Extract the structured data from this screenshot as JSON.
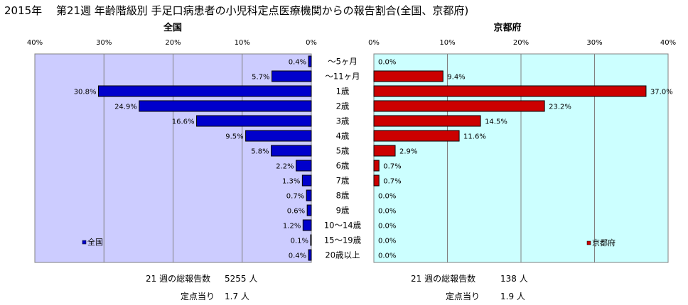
{
  "title": "2015年　 第21週 年齢階級別 手足口病患者の小児科定点医療機関からの報告割合(全国、京都府)",
  "chart_data": {
    "type": "bar",
    "categories": [
      "～5ヶ月",
      "～11ヶ月",
      "1歳",
      "2歳",
      "3歳",
      "4歳",
      "5歳",
      "6歳",
      "7歳",
      "8歳",
      "9歳",
      "10～14歳",
      "15～19歳",
      "20歳以上"
    ],
    "left": {
      "header": "全国",
      "legend": "全国",
      "color": "#0000cc",
      "plot_bg": "#ccccff",
      "values": [
        0.4,
        5.7,
        30.8,
        24.9,
        16.6,
        9.5,
        5.8,
        2.2,
        1.3,
        0.7,
        0.6,
        1.2,
        0.1,
        0.4
      ],
      "labels": [
        "0.4%",
        "5.7%",
        "30.8%",
        "24.9%",
        "16.6%",
        "9.5%",
        "5.8%",
        "2.2%",
        "1.3%",
        "0.7%",
        "0.6%",
        "1.2%",
        "0.1%",
        "0.4%"
      ],
      "xlim": [
        0,
        40
      ],
      "ticks": [
        "40%",
        "30%",
        "20%",
        "10%",
        "0%"
      ]
    },
    "right": {
      "header": "京都府",
      "legend": "京都府",
      "color": "#cc0000",
      "plot_bg": "#ccffff",
      "values": [
        0.0,
        9.4,
        37.0,
        23.2,
        14.5,
        11.6,
        2.9,
        0.7,
        0.7,
        0.0,
        0.0,
        0.0,
        0.0,
        0.0
      ],
      "labels": [
        "0.0%",
        "9.4%",
        "37.0%",
        "23.2%",
        "14.5%",
        "11.6%",
        "2.9%",
        "0.7%",
        "0.7%",
        "0.0%",
        "0.0%",
        "0.0%",
        "0.0%",
        "0.0%"
      ],
      "xlim": [
        0,
        40
      ],
      "ticks": [
        "0%",
        "10%",
        "20%",
        "30%",
        "40%"
      ]
    }
  },
  "footer": {
    "left_total_label": "21 週の総報告数",
    "left_total_value": "5255 人",
    "left_per_label": "定点当り",
    "left_per_value": "1.7 人",
    "right_total_label": "21 週の総報告数",
    "right_total_value": "138 人",
    "right_per_label": "定点当り",
    "right_per_value": "1.9 人"
  }
}
